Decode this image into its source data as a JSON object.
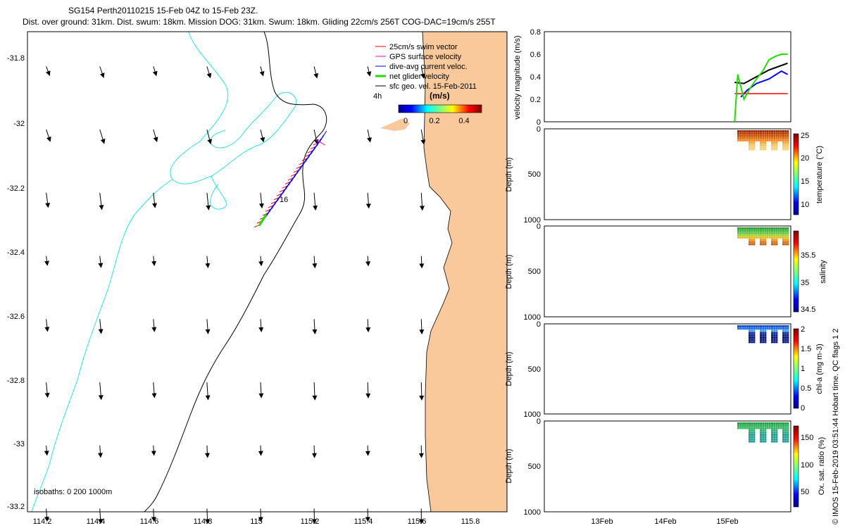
{
  "header": {
    "line1": "SG154 Perth20110215 15-Feb 04Z to 15-Feb 23Z.",
    "line2": "Dist. over ground: 31km. Dist. swum: 18km. Mission DOG: 31km. Swum: 18km. Gliding 22cm/s 256T COG-DAC=19cm/s 255T"
  },
  "colors": {
    "land": "#f9c89b",
    "isobath200": "#2ee0e8",
    "swim": "#ff0000",
    "gps": "#ff00ff",
    "dac": "#0000ff",
    "net": "#22dd00",
    "geo": "#000000"
  },
  "map": {
    "x_ticks": [
      "114.2",
      "114.4",
      "114.6",
      "114.8",
      "115",
      "115.2",
      "115.4",
      "115.6",
      "115.8"
    ],
    "y_ticks": [
      "-31.8",
      "-32",
      "-32.2",
      "-32.4",
      "-32.6",
      "-32.8",
      "-33",
      "-33.2"
    ],
    "legend": [
      "25cm/s swim vector",
      "GPS surface velocity",
      "dive-avg current veloc.",
      "net glider velocity",
      "sfc geo. vel. 15-Feb-2011"
    ],
    "scale_label": "4h",
    "colorbar_label": "(m/s)",
    "colorbar_ticks": [
      "0",
      "0.2",
      "0.4"
    ],
    "glider_label": "16",
    "isobaths_note": "isobaths: 0   200  1000m"
  },
  "panels": {
    "velocity": {
      "ylabel": "velocity magnitude (m/s)",
      "yticks": [
        "0",
        "0.2",
        "0.4",
        "0.6",
        "0.8"
      ]
    },
    "depth_ylabel": "Depth (m)",
    "depth_ticks": [
      "0",
      "500",
      "1000"
    ],
    "x_ticks": [
      "13Feb",
      "14Feb",
      "15Feb"
    ],
    "temperature": {
      "label": "temperature (°C)",
      "ticks": [
        "25",
        "20",
        "15",
        "10"
      ]
    },
    "salinity": {
      "label": "salinity",
      "ticks": [
        "35.5",
        "35",
        "34.5"
      ]
    },
    "chla": {
      "label": "chl-a (mg m-3)",
      "ticks": [
        "2",
        "1.5",
        "1",
        "0.5",
        "0"
      ]
    },
    "oxygen": {
      "label": "Ox. sat. ratio (%)",
      "ticks": [
        "150",
        "100",
        "50"
      ]
    }
  },
  "footer": "© IMOS 15-Feb-2019 03:51:44 Hobart time. QC flags 1  2",
  "chart_data": [
    {
      "type": "vector-map",
      "xlim": [
        114.13,
        115.92
      ],
      "ylim": [
        -33.21,
        -31.69
      ],
      "grid_lon": [
        114.2,
        114.4,
        114.6,
        114.8,
        115.0,
        115.2,
        115.4,
        115.6
      ],
      "grid_lat": [
        -31.8,
        -32.0,
        -32.2,
        -32.4,
        -32.6,
        -32.8,
        -33.0,
        -33.2
      ],
      "glider_track": {
        "start": [
          115.22,
          -32.04
        ],
        "end": [
          115.0,
          -32.3
        ]
      }
    },
    {
      "type": "line",
      "ylabel": "velocity magnitude (m/s)",
      "ylim": [
        0,
        0.8
      ],
      "series": [
        {
          "points": [
            [
              15.15,
              0.35
            ],
            [
              15.3,
              0.34
            ],
            [
              15.5,
              0.4
            ],
            [
              15.7,
              0.46
            ],
            [
              15.9,
              0.5
            ],
            [
              16.0,
              0.52
            ]
          ]
        },
        {
          "points": [
            [
              15.25,
              0.22
            ],
            [
              15.35,
              0.28
            ],
            [
              15.5,
              0.34
            ],
            [
              15.7,
              0.38
            ],
            [
              15.9,
              0.45
            ],
            [
              16.0,
              0.42
            ]
          ]
        },
        {
          "points": [
            [
              15.15,
              0.25
            ],
            [
              16.0,
              0.25
            ]
          ]
        },
        {
          "points": [
            [
              15.15,
              0.0
            ],
            [
              15.2,
              0.42
            ],
            [
              15.3,
              0.2
            ],
            [
              15.4,
              0.3
            ],
            [
              15.5,
              0.38
            ],
            [
              15.6,
              0.45
            ],
            [
              15.7,
              0.55
            ],
            [
              15.8,
              0.58
            ],
            [
              15.9,
              0.6
            ],
            [
              16.0,
              0.6
            ]
          ]
        }
      ]
    }
  ]
}
